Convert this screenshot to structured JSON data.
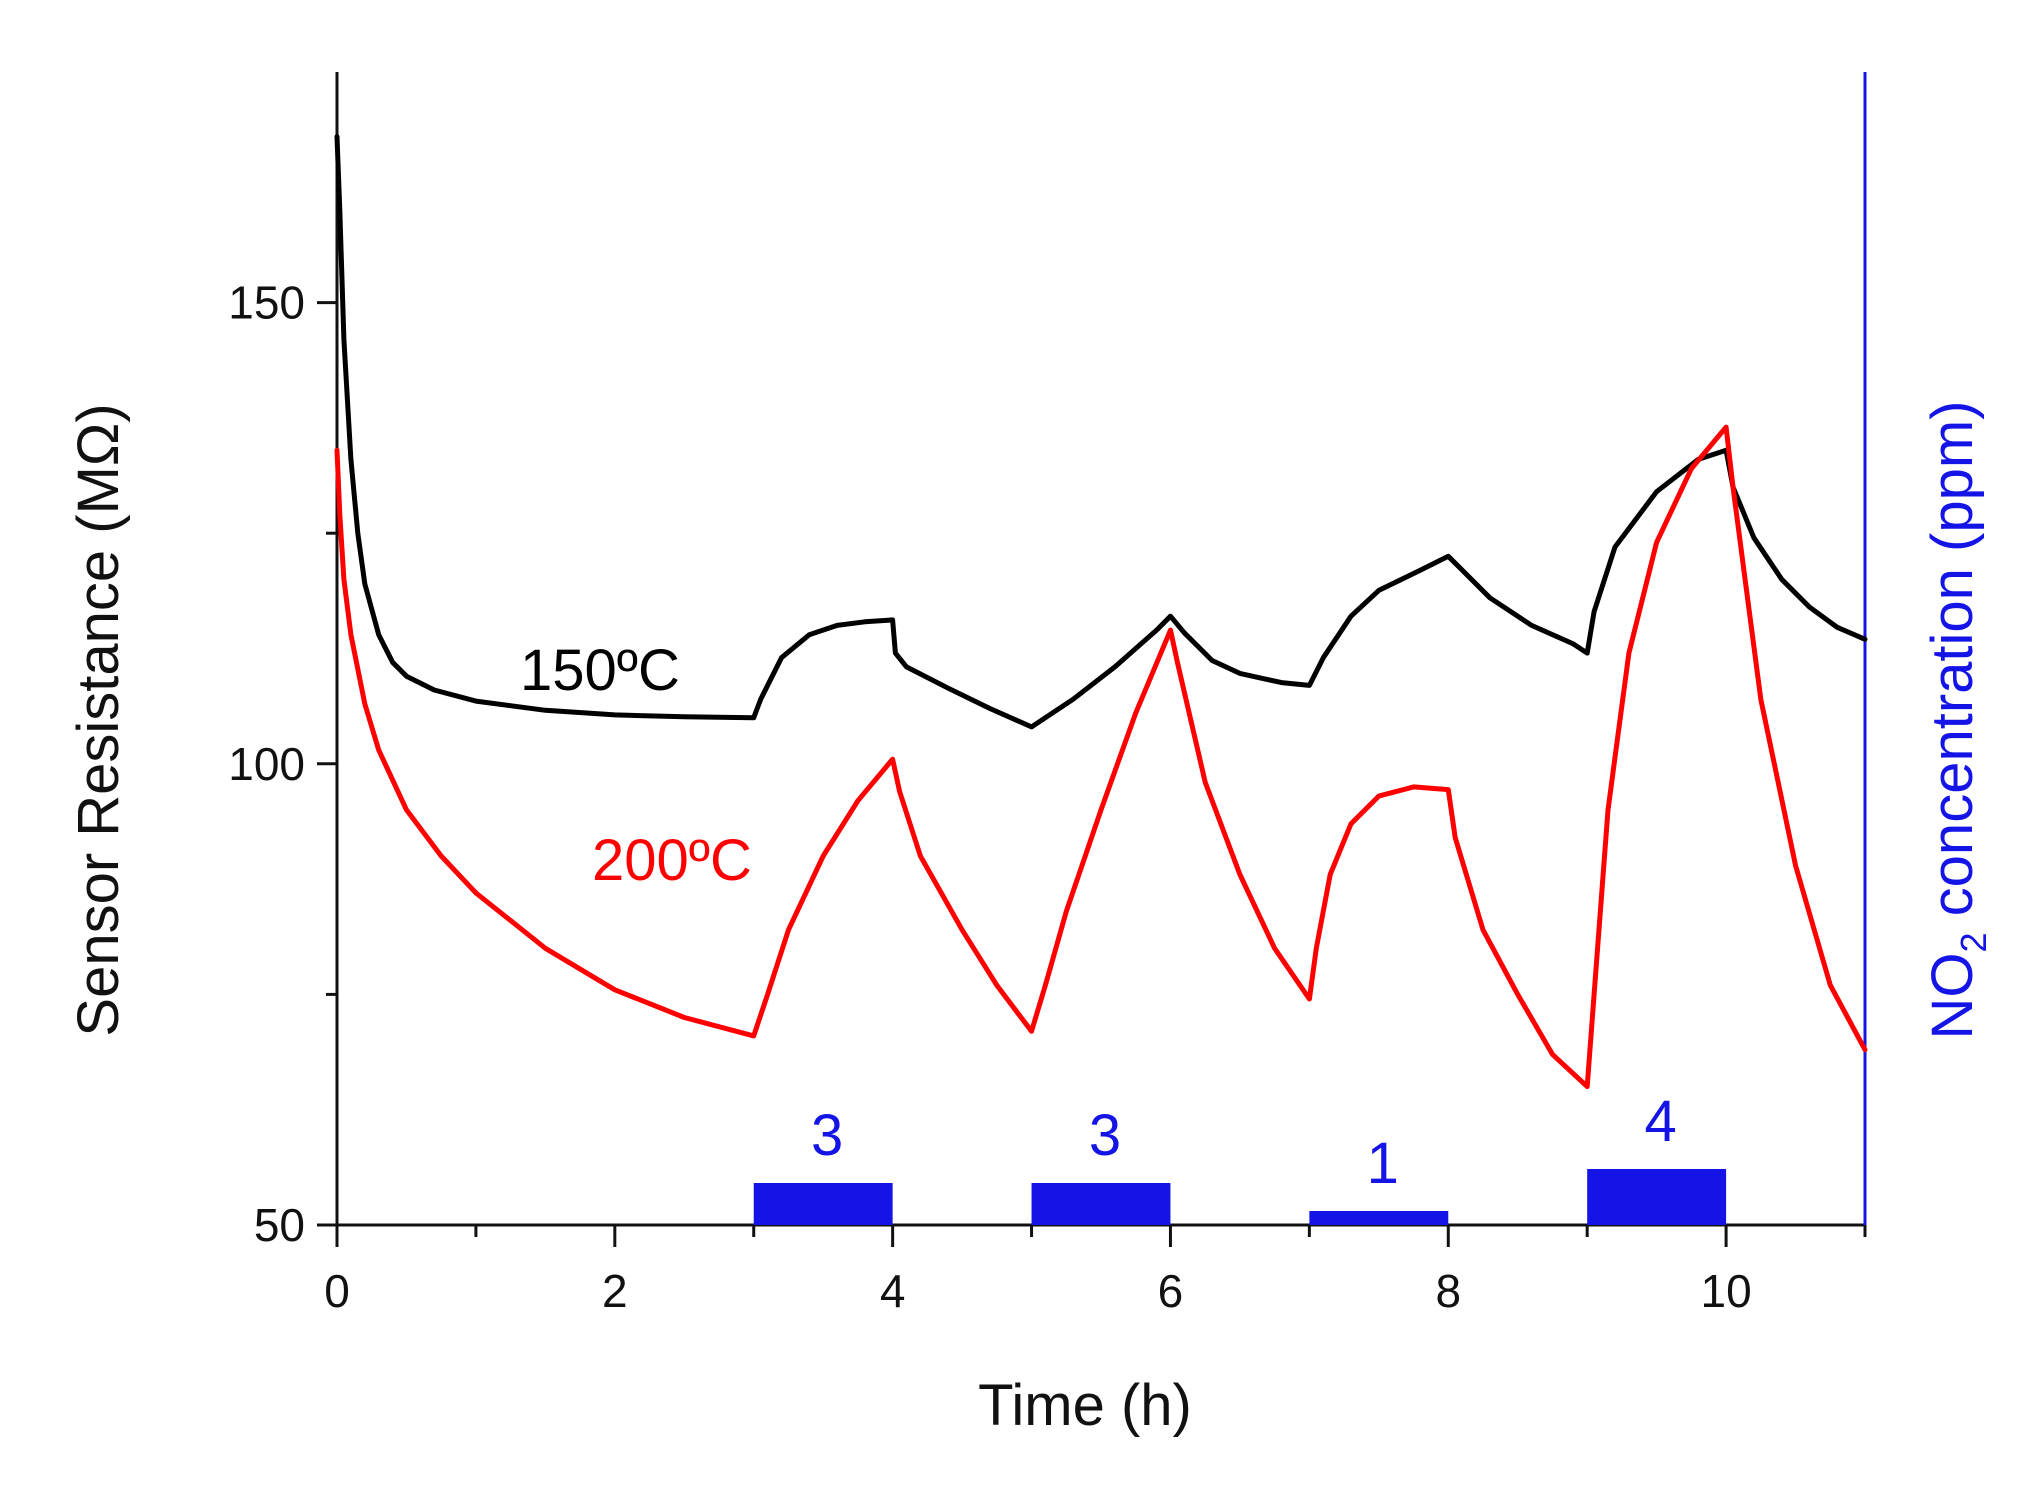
{
  "chart_data": {
    "type": "line",
    "title": "",
    "xlabel": "Time (h)",
    "ylabel": "Sensor Resistance (MΩ)",
    "y2label_prefix": "NO",
    "y2label_sub": "2",
    "y2label_suffix": " concentration (ppm)",
    "xlim": [
      0,
      11
    ],
    "ylim": [
      50,
      175
    ],
    "x_ticks": [
      0,
      2,
      4,
      6,
      8,
      10
    ],
    "x_tick_labels": [
      "0",
      "2",
      "4",
      "6",
      "8",
      "10"
    ],
    "y_ticks": [
      50,
      100,
      150
    ],
    "y_tick_labels": [
      "50",
      "100",
      "150"
    ],
    "colors": {
      "s150": "#000000",
      "s200": "#ff0000",
      "pulse": "#1414e6",
      "axis": "#111111"
    },
    "series": [
      {
        "name": "150ºC",
        "label": "150ºC",
        "color": "#000000",
        "x": [
          0,
          0.02,
          0.05,
          0.1,
          0.15,
          0.2,
          0.3,
          0.4,
          0.5,
          0.7,
          1.0,
          1.5,
          2.0,
          2.5,
          3.0,
          3.05,
          3.2,
          3.4,
          3.6,
          3.8,
          4.0,
          4.02,
          4.1,
          4.4,
          4.7,
          5.0,
          5.3,
          5.6,
          5.9,
          6.0,
          6.1,
          6.3,
          6.5,
          6.8,
          7.0,
          7.1,
          7.3,
          7.5,
          7.8,
          8.0,
          8.1,
          8.3,
          8.6,
          8.9,
          9.0,
          9.05,
          9.2,
          9.5,
          9.8,
          10.0,
          10.05,
          10.2,
          10.4,
          10.6,
          10.8,
          11.0
        ],
        "values": [
          168,
          160,
          146,
          133,
          125,
          119.5,
          114,
          111,
          109.5,
          108,
          106.8,
          105.8,
          105.3,
          105.1,
          105,
          107,
          111.5,
          114,
          115,
          115.4,
          115.6,
          112,
          110.5,
          108.2,
          106,
          104,
          107,
          110.5,
          114.5,
          116,
          114.2,
          111.2,
          109.8,
          108.8,
          108.5,
          111.5,
          116,
          118.8,
          121,
          122.5,
          121,
          118,
          115,
          113,
          112,
          116.5,
          123.5,
          129.5,
          133,
          134,
          130,
          124.5,
          120,
          117,
          114.8,
          113.5
        ]
      },
      {
        "name": "200ºC",
        "label": "200ºC",
        "color": "#ff0000",
        "x": [
          0,
          0.02,
          0.05,
          0.1,
          0.2,
          0.3,
          0.5,
          0.75,
          1.0,
          1.5,
          2.0,
          2.5,
          3.0,
          3.1,
          3.25,
          3.5,
          3.75,
          4.0,
          4.05,
          4.2,
          4.5,
          4.75,
          5.0,
          5.1,
          5.25,
          5.5,
          5.75,
          6.0,
          6.05,
          6.25,
          6.5,
          6.75,
          7.0,
          7.05,
          7.15,
          7.3,
          7.5,
          7.75,
          8.0,
          8.05,
          8.25,
          8.5,
          8.75,
          9.0,
          9.05,
          9.15,
          9.3,
          9.5,
          9.75,
          10.0,
          10.05,
          10.25,
          10.5,
          10.75,
          11.0
        ],
        "values": [
          134,
          127,
          120,
          114,
          106.5,
          101.5,
          95,
          90,
          86,
          80,
          75.5,
          72.5,
          70.5,
          75,
          82,
          90,
          96,
          100.5,
          97,
          90,
          82,
          76,
          71,
          76,
          84,
          95,
          105.5,
          114.5,
          111,
          98,
          88,
          80,
          74.5,
          80,
          88,
          93.5,
          96.5,
          97.5,
          97.2,
          92,
          82,
          75,
          68.5,
          65,
          75,
          95,
          112,
          124,
          132,
          136.5,
          130,
          107,
          89,
          76,
          69
        ]
      }
    ],
    "no2_pulses": [
      {
        "start": 3,
        "end": 4,
        "concentration": 3,
        "label": "3"
      },
      {
        "start": 5,
        "end": 6,
        "concentration": 3,
        "label": "3"
      },
      {
        "start": 7,
        "end": 8,
        "concentration": 1,
        "label": "1"
      },
      {
        "start": 9,
        "end": 10,
        "concentration": 4,
        "label": "4"
      }
    ],
    "series_label_positions": {
      "150ºC": "near curve at ~2 h",
      "200ºC": "near curve at ~2 h"
    },
    "legend": "none (inline labels)",
    "grid": false
  }
}
